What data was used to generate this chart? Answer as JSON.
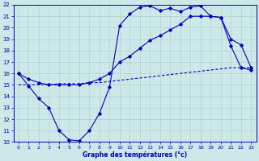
{
  "xlabel": "Graphe des températures (°c)",
  "xlim": [
    -0.5,
    23.5
  ],
  "ylim": [
    10,
    22
  ],
  "xticks": [
    0,
    1,
    2,
    3,
    4,
    5,
    6,
    7,
    8,
    9,
    10,
    11,
    12,
    13,
    14,
    15,
    16,
    17,
    18,
    19,
    20,
    21,
    22,
    23
  ],
  "yticks": [
    10,
    11,
    12,
    13,
    14,
    15,
    16,
    17,
    18,
    19,
    20,
    21,
    22
  ],
  "background_color": "#cce8e8",
  "grid_color": "#aacccc",
  "line_color": "#0000bb",
  "line1_x": [
    0,
    1,
    2,
    3,
    4,
    5,
    6,
    7,
    8,
    9,
    10,
    11,
    12,
    13,
    14,
    15,
    16,
    17,
    18,
    19,
    20,
    21,
    22,
    23
  ],
  "line1_y": [
    16.0,
    14.9,
    13.8,
    13.0,
    11.0,
    10.2,
    10.1,
    11.0,
    12.5,
    14.8,
    20.2,
    21.2,
    21.8,
    21.9,
    21.5,
    21.7,
    21.4,
    21.8,
    21.9,
    21.0,
    20.9,
    18.4,
    16.5,
    16.3
  ],
  "line2_x": [
    0,
    1,
    2,
    3,
    4,
    5,
    6,
    7,
    8,
    9,
    10,
    11,
    12,
    13,
    14,
    15,
    16,
    17,
    18,
    19,
    20,
    21,
    22,
    23
  ],
  "line2_y": [
    16.0,
    15.5,
    15.2,
    15.0,
    15.0,
    15.0,
    15.0,
    15.2,
    15.5,
    16.0,
    17.0,
    17.5,
    18.2,
    18.9,
    19.3,
    19.8,
    20.3,
    21.0,
    21.0,
    21.0,
    20.9,
    19.0,
    18.5,
    16.5
  ],
  "line3_x": [
    0,
    1,
    2,
    3,
    4,
    5,
    6,
    7,
    8,
    9,
    10,
    11,
    12,
    13,
    14,
    15,
    16,
    17,
    18,
    19,
    20,
    21,
    22,
    23
  ],
  "line3_y": [
    15.0,
    15.0,
    15.0,
    15.0,
    15.1,
    15.1,
    15.1,
    15.2,
    15.2,
    15.3,
    15.4,
    15.5,
    15.6,
    15.7,
    15.8,
    15.9,
    16.0,
    16.1,
    16.2,
    16.3,
    16.4,
    16.5,
    16.5,
    16.5
  ]
}
